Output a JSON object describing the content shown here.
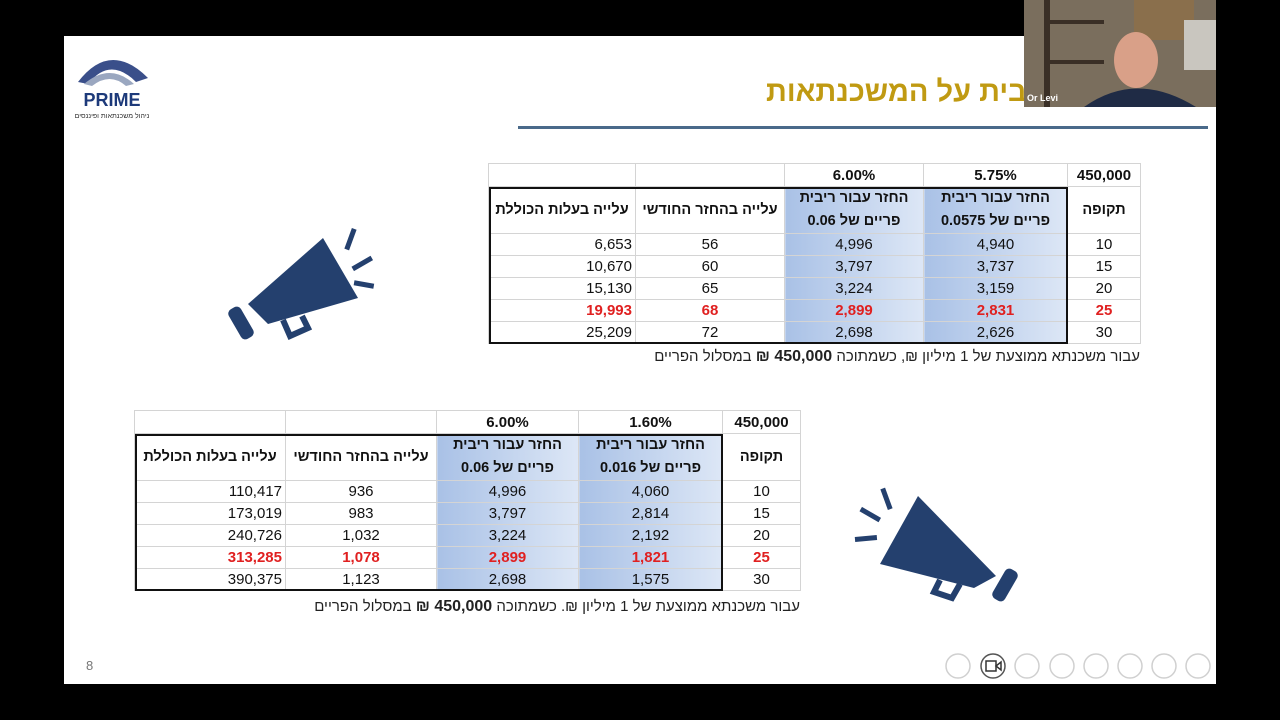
{
  "slide": {
    "title": "ת הריבית על המשכנתאות",
    "logo": {
      "name": "PRIME",
      "tagline": "ניהול משכנתאות ופיננסים"
    },
    "page_number": "8",
    "participant": "Or Levi"
  },
  "tables": [
    {
      "header_top": [
        "450,000",
        "5.75%",
        "6.00%"
      ],
      "header": [
        "תקופה",
        "החזר עבור ריבית פריים של 0.0575",
        "החזר עבור ריבית פריים של 0.06",
        "עלייה בהחזר החודשי",
        "עלייה בעלות הכוללת"
      ],
      "rows": [
        [
          "10",
          "4,940",
          "4,996",
          "56",
          "6,653"
        ],
        [
          "15",
          "3,737",
          "3,797",
          "60",
          "10,670"
        ],
        [
          "20",
          "3,159",
          "3,224",
          "65",
          "15,130"
        ],
        [
          "25",
          "2,831",
          "2,899",
          "68",
          "19,993"
        ],
        [
          "30",
          "2,626",
          "2,698",
          "72",
          "25,209"
        ]
      ],
      "highlight_row": 3,
      "note": {
        "before": "עבור משכנתא ממוצעת של 1 מיליון ₪, כשמתוכה",
        "bold": "450,000 ₪",
        "after": "במסלול הפריים"
      }
    },
    {
      "header_top": [
        "450,000",
        "1.60%",
        "6.00%"
      ],
      "header": [
        "תקופה",
        "החזר עבור ריבית פריים של 0.016",
        "החזר עבור ריבית פריים של 0.06",
        "עלייה בהחזר החודשי",
        "עלייה בעלות הכוללת"
      ],
      "rows": [
        [
          "10",
          "4,060",
          "4,996",
          "936",
          "110,417"
        ],
        [
          "15",
          "2,814",
          "3,797",
          "983",
          "173,019"
        ],
        [
          "20",
          "2,192",
          "3,224",
          "1,032",
          "240,726"
        ],
        [
          "25",
          "1,821",
          "2,899",
          "1,078",
          "313,285"
        ],
        [
          "30",
          "1,575",
          "2,698",
          "1,123",
          "390,375"
        ]
      ],
      "highlight_row": 3,
      "note": {
        "before": "עבור משכנתא ממוצעת של 1 מיליון ₪. כשמתוכה",
        "bold": "450,000 ₪",
        "after": "במסלול הפריים"
      }
    }
  ]
}
